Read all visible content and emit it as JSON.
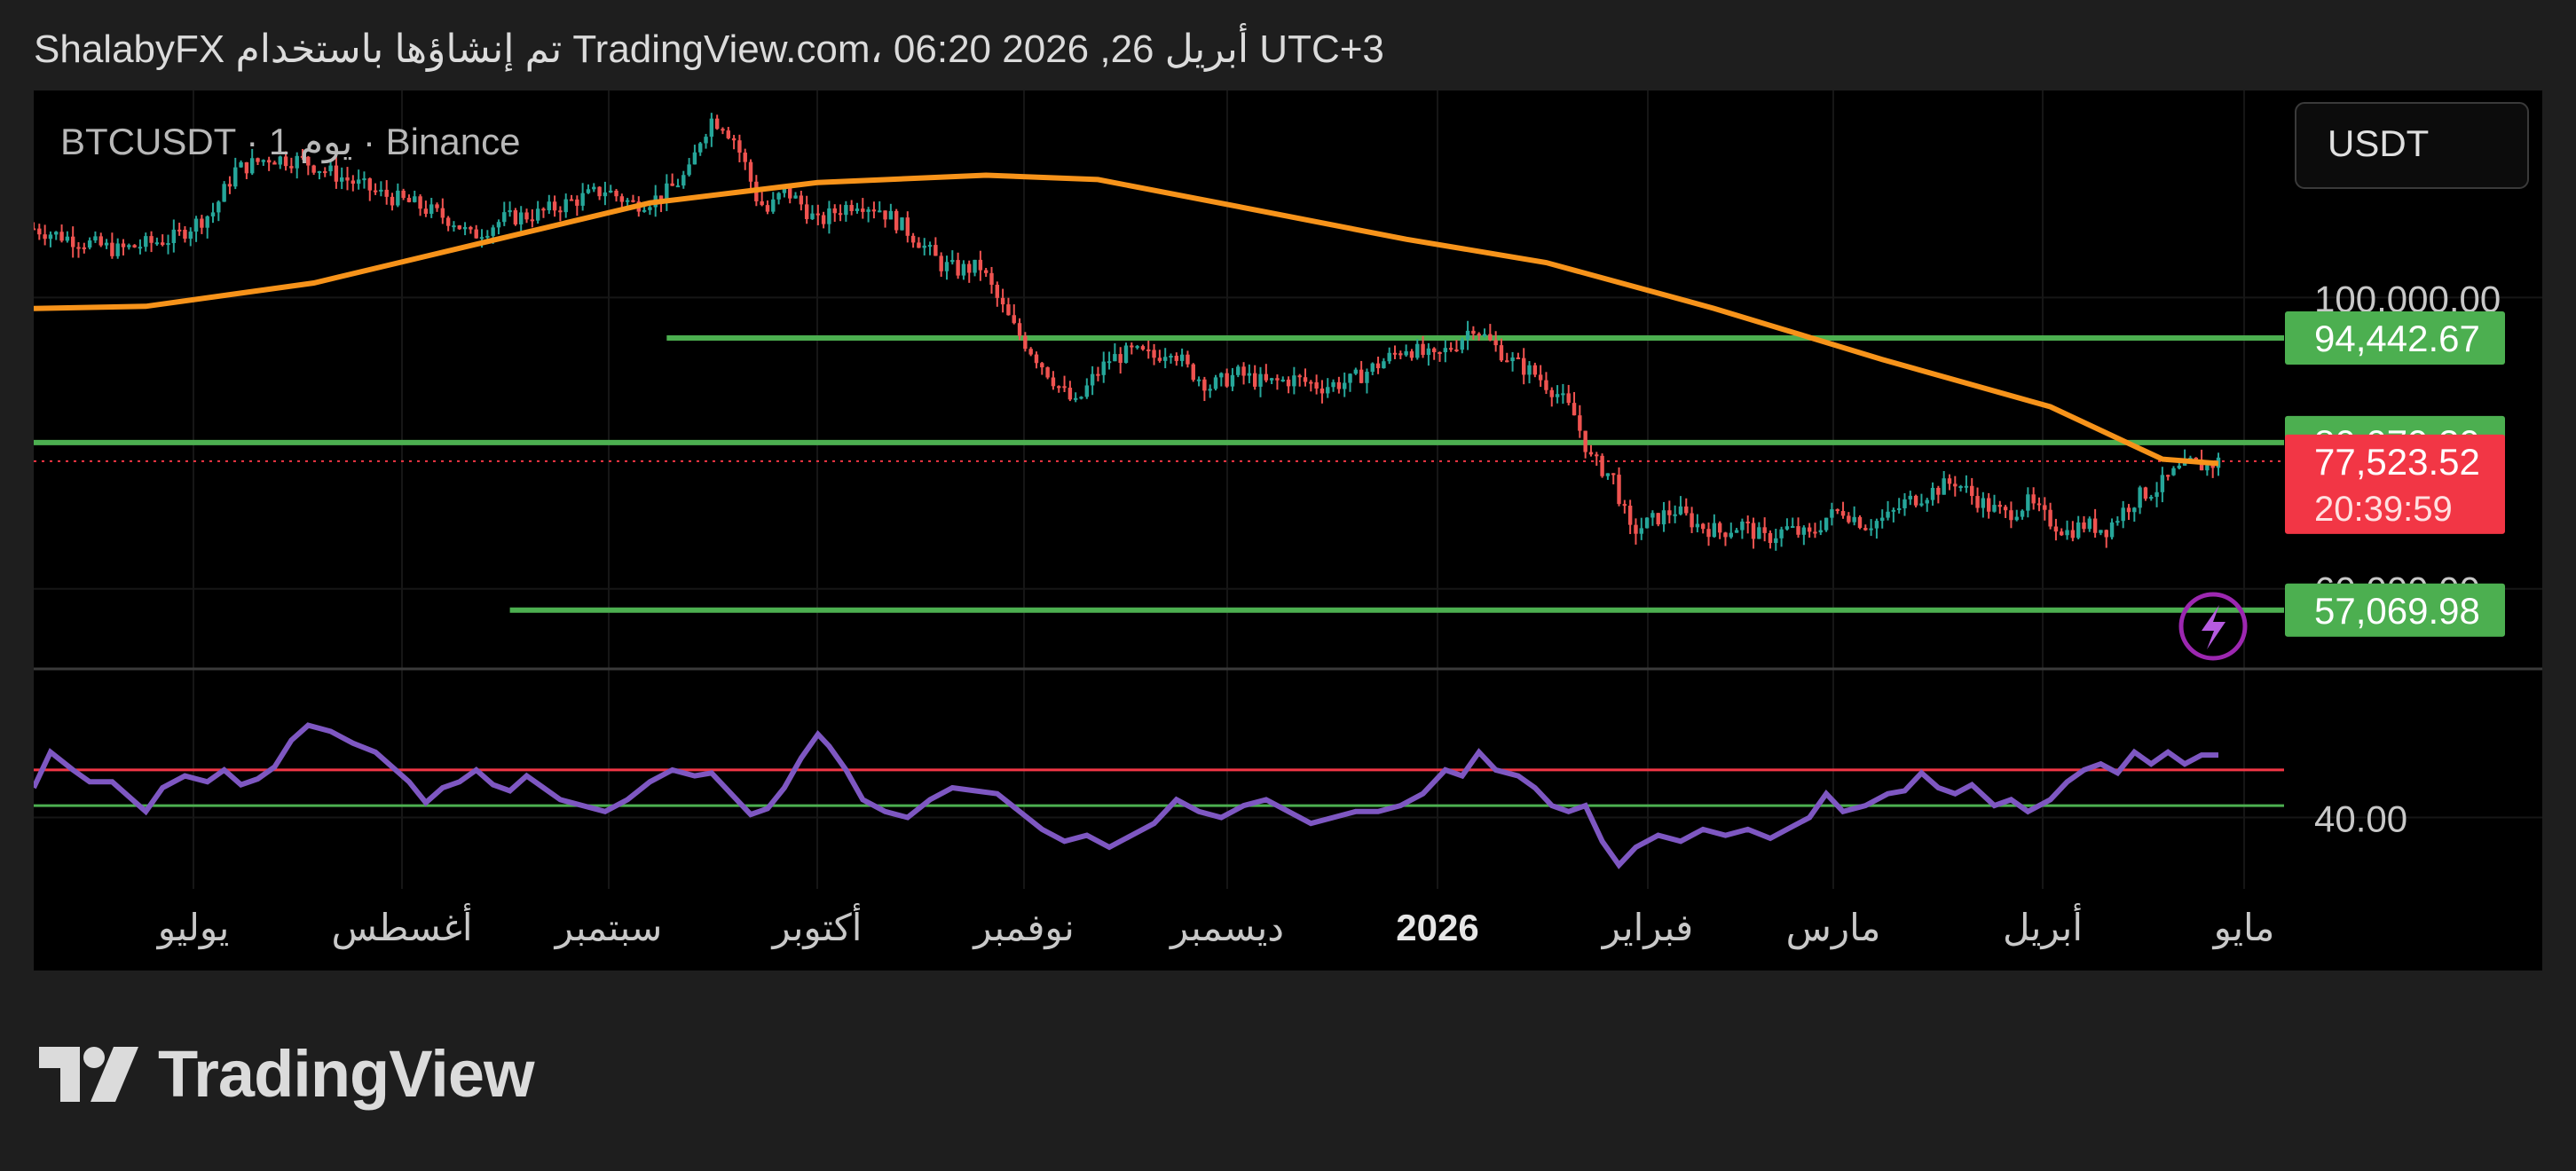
{
  "header": {
    "text": "ShalabyFX تم إنشاؤها باستخدام TradingView.com، 06:20 2026 ,26 أبريل UTC+3"
  },
  "footer": {
    "brand": "TradingView"
  },
  "colors": {
    "background": "#000000",
    "page": "#1e1e1e",
    "up": "#26a69a",
    "down": "#ef5350",
    "ma": "#f7931a",
    "levels": "#4caf50",
    "price": "#f23645",
    "rsi": "#7e57c2",
    "rsi_upper": "#f23645",
    "rsi_lower": "#4caf50"
  },
  "icons": {
    "alert": "lightning-icon"
  },
  "chart_data": [
    {
      "type": "candlestick",
      "symbol_label": "BTCUSDT · 1 يوم · Binance",
      "currency": "USDT",
      "x_labels": [
        "يوليو",
        "أغسطس",
        "سبتمبر",
        "أكتوبر",
        "نوفمبر",
        "ديسمبر",
        "2026",
        "فبراير",
        "مارس",
        "أبريل",
        "مايو"
      ],
      "y_labels": [
        "100,000.00",
        "60,000.00"
      ],
      "ylim": [
        49000,
        126000
      ],
      "series_close": [
        [
          0,
          109500
        ],
        [
          8,
          107800
        ],
        [
          15,
          106500
        ],
        [
          25,
          108200
        ],
        [
          32,
          111800
        ],
        [
          36,
          117500
        ],
        [
          42,
          119200
        ],
        [
          48,
          118800
        ],
        [
          55,
          116500
        ],
        [
          62,
          114200
        ],
        [
          68,
          112800
        ],
        [
          75,
          110500
        ],
        [
          78,
          108400
        ],
        [
          84,
          110800
        ],
        [
          90,
          111500
        ],
        [
          96,
          113200
        ],
        [
          102,
          114800
        ],
        [
          107,
          112800
        ],
        [
          112,
          113800
        ],
        [
          117,
          117200
        ],
        [
          119,
          121800
        ],
        [
          121,
          124500
        ],
        [
          123,
          123800
        ],
        [
          125,
          121800
        ],
        [
          127,
          118200
        ],
        [
          129,
          113800
        ],
        [
          131,
          111800
        ],
        [
          134,
          114800
        ],
        [
          137,
          112800
        ],
        [
          140,
          110200
        ],
        [
          143,
          111800
        ],
        [
          147,
          113200
        ],
        [
          151,
          112200
        ],
        [
          155,
          109800
        ],
        [
          158,
          107800
        ],
        [
          162,
          104500
        ],
        [
          165,
          103800
        ],
        [
          169,
          104200
        ],
        [
          172,
          99800
        ],
        [
          175,
          95800
        ],
        [
          178,
          92800
        ],
        [
          181,
          89800
        ],
        [
          184,
          86800
        ],
        [
          186,
          85200
        ],
        [
          189,
          88800
        ],
        [
          192,
          91500
        ],
        [
          196,
          92500
        ],
        [
          200,
          91800
        ],
        [
          203,
          93200
        ],
        [
          206,
          90200
        ],
        [
          210,
          87800
        ],
        [
          215,
          89500
        ],
        [
          220,
          88200
        ],
        [
          225,
          88800
        ],
        [
          230,
          87800
        ],
        [
          235,
          88500
        ],
        [
          240,
          90800
        ],
        [
          245,
          93200
        ],
        [
          250,
          91500
        ],
        [
          254,
          93800
        ],
        [
          257,
          96200
        ],
        [
          260,
          93800
        ],
        [
          264,
          91200
        ],
        [
          268,
          89500
        ],
        [
          272,
          86800
        ],
        [
          275,
          83800
        ],
        [
          278,
          77800
        ],
        [
          282,
          75200
        ],
        [
          285,
          67800
        ],
        [
          287,
          68500
        ],
        [
          290,
          69800
        ],
        [
          293,
          70800
        ],
        [
          297,
          68800
        ],
        [
          301,
          67800
        ],
        [
          305,
          68800
        ],
        [
          309,
          66800
        ],
        [
          313,
          68200
        ],
        [
          317,
          67200
        ],
        [
          320,
          69800
        ],
        [
          323,
          70800
        ],
        [
          327,
          68800
        ],
        [
          331,
          69800
        ],
        [
          334,
          71800
        ],
        [
          337,
          72800
        ],
        [
          340,
          73800
        ],
        [
          343,
          74800
        ],
        [
          346,
          72800
        ],
        [
          349,
          71200
        ],
        [
          352,
          70200
        ],
        [
          356,
          71800
        ],
        [
          359,
          69800
        ],
        [
          363,
          67800
        ],
        [
          366,
          68800
        ],
        [
          370,
          68200
        ],
        [
          373,
          70800
        ],
        [
          376,
          72800
        ],
        [
          379,
          73800
        ],
        [
          382,
          75800
        ],
        [
          385,
          77200
        ],
        [
          388,
          76800
        ],
        [
          390,
          77523
        ]
      ],
      "ma_series": {
        "name": "",
        "points": [
          [
            0,
            98500
          ],
          [
            20,
            98800
          ],
          [
            50,
            102000
          ],
          [
            80,
            107500
          ],
          [
            110,
            113000
          ],
          [
            140,
            115800
          ],
          [
            170,
            116800
          ],
          [
            190,
            116200
          ],
          [
            215,
            112500
          ],
          [
            245,
            108000
          ],
          [
            270,
            104800
          ],
          [
            300,
            98500
          ],
          [
            330,
            91500
          ],
          [
            360,
            85000
          ],
          [
            380,
            77800
          ],
          [
            390,
            77200
          ]
        ]
      },
      "levels": [
        {
          "label": "94,442.67",
          "value": 94442.67,
          "x_start": 113
        },
        {
          "label": "80,079.39",
          "value": 80079.39,
          "x_start": 0
        },
        {
          "label": "57,069.98",
          "value": 57069.98,
          "x_start": 85
        }
      ],
      "last_price": {
        "label": "77,523.52",
        "countdown": "20:39:59",
        "value": 77523.52
      }
    },
    {
      "type": "line",
      "indicator": "RSI",
      "y_labels": [
        "40.00"
      ],
      "ylim": [
        10,
        90
      ],
      "upper_level": 56,
      "lower_level": 44,
      "series": [
        {
          "name": "",
          "points": [
            [
              0,
              50
            ],
            [
              3,
              62
            ],
            [
              7,
              56
            ],
            [
              10,
              52
            ],
            [
              14,
              52
            ],
            [
              17,
              47
            ],
            [
              20,
              42
            ],
            [
              23,
              50
            ],
            [
              27,
              54
            ],
            [
              31,
              52
            ],
            [
              34,
              56
            ],
            [
              37,
              51
            ],
            [
              40,
              53
            ],
            [
              43,
              57
            ],
            [
              46,
              66
            ],
            [
              49,
              71
            ],
            [
              53,
              69
            ],
            [
              57,
              65
            ],
            [
              61,
              62
            ],
            [
              64,
              57
            ],
            [
              67,
              52
            ],
            [
              70,
              45
            ],
            [
              73,
              50
            ],
            [
              76,
              52
            ],
            [
              79,
              56
            ],
            [
              82,
              51
            ],
            [
              85,
              49
            ],
            [
              88,
              54
            ],
            [
              91,
              50
            ],
            [
              94,
              46
            ],
            [
              98,
              44
            ],
            [
              102,
              42
            ],
            [
              106,
              46
            ],
            [
              110,
              52
            ],
            [
              114,
              56
            ],
            [
              118,
              54
            ],
            [
              121,
              55
            ],
            [
              124,
              49
            ],
            [
              126,
              45
            ],
            [
              128,
              41
            ],
            [
              131,
              43
            ],
            [
              134,
              50
            ],
            [
              137,
              60
            ],
            [
              140,
              68
            ],
            [
              142,
              64
            ],
            [
              145,
              56
            ],
            [
              148,
              46
            ],
            [
              152,
              42
            ],
            [
              156,
              40
            ],
            [
              160,
              46
            ],
            [
              164,
              50
            ],
            [
              168,
              49
            ],
            [
              172,
              48
            ],
            [
              176,
              42
            ],
            [
              180,
              36
            ],
            [
              184,
              32
            ],
            [
              188,
              34
            ],
            [
              192,
              30
            ],
            [
              196,
              34
            ],
            [
              200,
              38
            ],
            [
              204,
              46
            ],
            [
              208,
              42
            ],
            [
              212,
              40
            ],
            [
              216,
              44
            ],
            [
              220,
              46
            ],
            [
              224,
              42
            ],
            [
              228,
              38
            ],
            [
              232,
              40
            ],
            [
              236,
              42
            ],
            [
              240,
              42
            ],
            [
              244,
              44
            ],
            [
              248,
              48
            ],
            [
              252,
              56
            ],
            [
              255,
              54
            ],
            [
              258,
              62
            ],
            [
              261,
              56
            ],
            [
              265,
              54
            ],
            [
              268,
              50
            ],
            [
              271,
              44
            ],
            [
              274,
              42
            ],
            [
              277,
              44
            ],
            [
              280,
              32
            ],
            [
              283,
              24
            ],
            [
              286,
              30
            ],
            [
              290,
              34
            ],
            [
              294,
              32
            ],
            [
              298,
              36
            ],
            [
              302,
              34
            ],
            [
              306,
              36
            ],
            [
              310,
              33
            ],
            [
              313,
              36
            ],
            [
              317,
              40
            ],
            [
              320,
              48
            ],
            [
              323,
              42
            ],
            [
              327,
              44
            ],
            [
              331,
              48
            ],
            [
              334,
              49
            ],
            [
              337,
              55
            ],
            [
              340,
              50
            ],
            [
              343,
              48
            ],
            [
              346,
              51
            ],
            [
              350,
              44
            ],
            [
              353,
              46
            ],
            [
              356,
              42
            ],
            [
              360,
              46
            ],
            [
              363,
              52
            ],
            [
              366,
              56
            ],
            [
              369,
              58
            ],
            [
              372,
              55
            ],
            [
              375,
              62
            ],
            [
              378,
              58
            ],
            [
              381,
              62
            ],
            [
              384,
              58
            ],
            [
              387,
              61
            ],
            [
              390,
              61
            ]
          ]
        }
      ]
    }
  ]
}
